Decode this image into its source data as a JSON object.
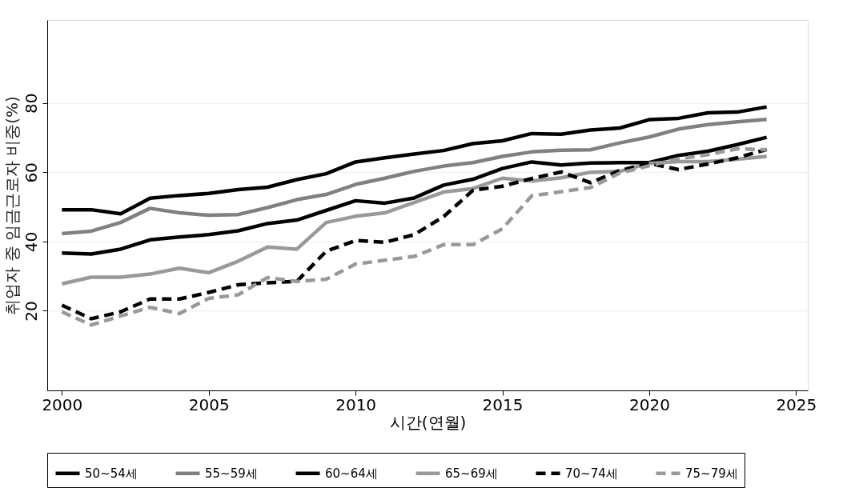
{
  "chart_data": {
    "type": "line",
    "xlabel": "시간(연월)",
    "ylabel": "취업자 중 임금근로자 비중(%)",
    "x": [
      2000,
      2001,
      2002,
      2003,
      2004,
      2005,
      2006,
      2007,
      2008,
      2009,
      2010,
      2011,
      2012,
      2013,
      2014,
      2015,
      2016,
      2017,
      2018,
      2019,
      2020,
      2021,
      2022,
      2023,
      2024
    ],
    "xlim": [
      1999.5,
      2025.4
    ],
    "xticks": [
      2000,
      2005,
      2010,
      2015,
      2020,
      2025
    ],
    "ylim": [
      -3,
      104
    ],
    "yticks": [
      20,
      40,
      60,
      80
    ],
    "grid": "y",
    "legend": "bottom",
    "marker": "none",
    "series": [
      {
        "name": "50~54세",
        "color": "#000000",
        "line_style": "solid",
        "values": [
          49.2,
          49.2,
          48,
          52.5,
          53.3,
          53.9,
          55,
          55.7,
          57.9,
          59.6,
          63,
          64.2,
          65.3,
          66.3,
          68.3,
          69.1,
          71.2,
          71,
          72.2,
          72.8,
          75.2,
          75.6,
          77.2,
          77.4,
          78.9
        ]
      },
      {
        "name": "55~59세",
        "color": "#808080",
        "line_style": "solid",
        "values": [
          42.3,
          43,
          45.5,
          49.6,
          48.3,
          47.6,
          47.8,
          49.8,
          52.1,
          53.6,
          56.5,
          58.3,
          60.3,
          61.8,
          62.8,
          64.6,
          65.9,
          66.4,
          66.5,
          68.5,
          70.2,
          72.5,
          73.8,
          74.6,
          75.3
        ]
      },
      {
        "name": "60~64세",
        "color": "#000000",
        "line_style": "solid",
        "values": [
          36.7,
          36.4,
          37.8,
          40.5,
          41.3,
          42,
          43.1,
          45.2,
          46.2,
          49,
          51.8,
          51.1,
          52.6,
          56.3,
          58,
          61.1,
          63,
          62.1,
          62.7,
          62.8,
          62.8,
          64.9,
          66.1,
          68,
          70.1
        ]
      },
      {
        "name": "65~69세",
        "color": "#999999",
        "line_style": "solid",
        "values": [
          27.8,
          29.7,
          29.7,
          30.6,
          32.3,
          31,
          34.3,
          38.4,
          37.8,
          45.5,
          47.3,
          48.3,
          51.3,
          54.3,
          55.3,
          58.3,
          57.5,
          58.4,
          60,
          60.3,
          62.6,
          63.1,
          63.1,
          63.8,
          64.6
        ]
      },
      {
        "name": "70~74세",
        "color": "#000000",
        "line_style": "dashed",
        "values": [
          21.6,
          17.7,
          19.7,
          23.4,
          23.4,
          25.3,
          27.5,
          28.1,
          28.5,
          37.2,
          40.3,
          39.8,
          42,
          47.2,
          54.8,
          56,
          58.2,
          60.1,
          57,
          60.5,
          62.6,
          60.8,
          62.4,
          64.2,
          66.6
        ]
      },
      {
        "name": "75~79세",
        "color": "#999999",
        "line_style": "dashed",
        "values": [
          19.7,
          15.9,
          18.5,
          21,
          19.2,
          23.6,
          24.6,
          29.6,
          28.5,
          29.1,
          33.5,
          34.6,
          35.7,
          39.1,
          39.1,
          43.7,
          53.2,
          54.4,
          55.6,
          59.8,
          61.9,
          63.9,
          65.1,
          66.8,
          66.5
        ]
      }
    ]
  }
}
